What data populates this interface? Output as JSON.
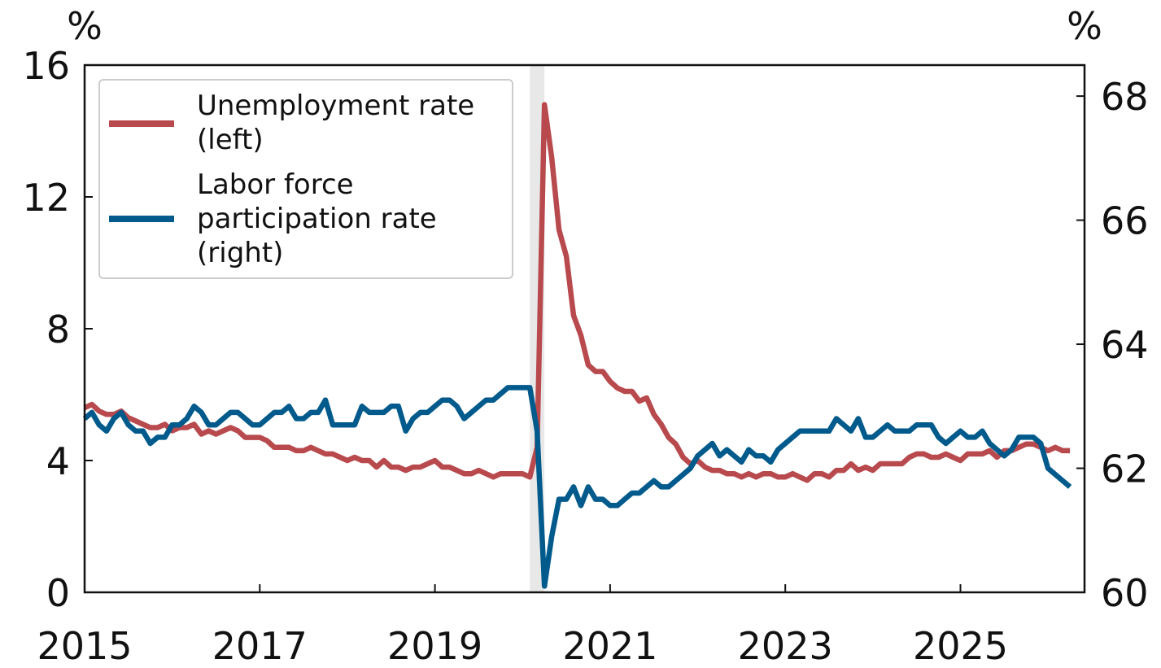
{
  "chart_data": {
    "type": "line",
    "title": "",
    "xlabel": "",
    "left_unit": "%",
    "right_unit": "%",
    "x_ticks": [
      "2015",
      "2017",
      "2019",
      "2021",
      "2023",
      "2025"
    ],
    "xlim": [
      "2015-01",
      "2026-06"
    ],
    "y_left": {
      "lim": [
        0,
        16
      ],
      "ticks": [
        "0",
        "4",
        "8",
        "12",
        "16"
      ]
    },
    "y_right": {
      "lim": [
        60,
        68.5
      ],
      "ticks": [
        "60",
        "62",
        "64",
        "66",
        "68"
      ]
    },
    "shaded_periods": [
      {
        "start": "2020-02",
        "end": "2020-04",
        "color": "#d9d9d9"
      }
    ],
    "legend": {
      "position": "top-left",
      "entries": [
        {
          "lines": [
            "Unemployment rate",
            "(left)"
          ],
          "color": "#b84a4e"
        },
        {
          "lines": [
            "Labor force",
            "participation rate",
            "(right)"
          ],
          "color": "#005a8c"
        }
      ]
    },
    "series": [
      {
        "name": "Unemployment rate (left)",
        "axis": "left",
        "color": "#b84a4e",
        "start": "2015-01",
        "values": [
          5.6,
          5.7,
          5.5,
          5.4,
          5.4,
          5.5,
          5.3,
          5.2,
          5.1,
          5.0,
          5.0,
          5.1,
          4.9,
          5.0,
          5.0,
          5.1,
          4.8,
          4.9,
          4.8,
          4.9,
          5.0,
          4.9,
          4.7,
          4.7,
          4.7,
          4.6,
          4.4,
          4.4,
          4.4,
          4.3,
          4.3,
          4.4,
          4.3,
          4.2,
          4.2,
          4.1,
          4.0,
          4.1,
          4.0,
          4.0,
          3.8,
          4.0,
          3.8,
          3.8,
          3.7,
          3.8,
          3.8,
          3.9,
          4.0,
          3.8,
          3.8,
          3.7,
          3.6,
          3.6,
          3.7,
          3.6,
          3.5,
          3.6,
          3.6,
          3.6,
          3.6,
          3.5,
          4.4,
          14.8,
          13.2,
          11.0,
          10.2,
          8.4,
          7.8,
          6.9,
          6.7,
          6.7,
          6.4,
          6.2,
          6.1,
          6.1,
          5.8,
          5.9,
          5.4,
          5.1,
          4.7,
          4.5,
          4.1,
          3.9,
          4.0,
          3.8,
          3.7,
          3.7,
          3.6,
          3.6,
          3.5,
          3.6,
          3.5,
          3.6,
          3.6,
          3.5,
          3.5,
          3.6,
          3.5,
          3.4,
          3.6,
          3.6,
          3.5,
          3.7,
          3.7,
          3.9,
          3.7,
          3.8,
          3.7,
          3.9,
          3.9,
          3.9,
          3.9,
          4.1,
          4.2,
          4.2,
          4.1,
          4.1,
          4.2,
          4.1,
          4.0,
          4.2,
          4.2,
          4.2,
          4.3,
          4.1,
          4.3,
          4.3,
          4.4,
          4.5,
          4.5,
          4.4,
          4.3,
          4.4,
          4.3,
          4.3
        ]
      },
      {
        "name": "Labor force participation rate (right)",
        "axis": "right",
        "color": "#005a8c",
        "start": "2015-01",
        "values": [
          62.8,
          62.9,
          62.7,
          62.6,
          62.8,
          62.9,
          62.7,
          62.6,
          62.6,
          62.4,
          62.5,
          62.5,
          62.7,
          62.7,
          62.8,
          63.0,
          62.9,
          62.7,
          62.7,
          62.8,
          62.9,
          62.9,
          62.8,
          62.7,
          62.7,
          62.8,
          62.9,
          62.9,
          63.0,
          62.8,
          62.8,
          62.9,
          62.9,
          63.1,
          62.7,
          62.7,
          62.7,
          62.7,
          63.0,
          62.9,
          62.9,
          62.9,
          63.0,
          63.0,
          62.6,
          62.8,
          62.9,
          62.9,
          63.0,
          63.1,
          63.1,
          63.0,
          62.8,
          62.9,
          63.0,
          63.1,
          63.1,
          63.2,
          63.3,
          63.3,
          63.3,
          63.3,
          62.6,
          60.1,
          60.9,
          61.5,
          61.5,
          61.7,
          61.4,
          61.7,
          61.5,
          61.5,
          61.4,
          61.4,
          61.5,
          61.6,
          61.6,
          61.7,
          61.8,
          61.7,
          61.7,
          61.8,
          61.9,
          62.0,
          62.2,
          62.3,
          62.4,
          62.2,
          62.3,
          62.2,
          62.1,
          62.3,
          62.2,
          62.2,
          62.1,
          62.3,
          62.4,
          62.5,
          62.6,
          62.6,
          62.6,
          62.6,
          62.6,
          62.8,
          62.7,
          62.6,
          62.8,
          62.5,
          62.5,
          62.6,
          62.7,
          62.6,
          62.6,
          62.6,
          62.7,
          62.7,
          62.7,
          62.5,
          62.4,
          62.5,
          62.6,
          62.5,
          62.5,
          62.6,
          62.4,
          62.3,
          62.2,
          62.3,
          62.5,
          62.5,
          62.5,
          62.4,
          62.0,
          61.9,
          61.8,
          61.7
        ]
      }
    ]
  }
}
